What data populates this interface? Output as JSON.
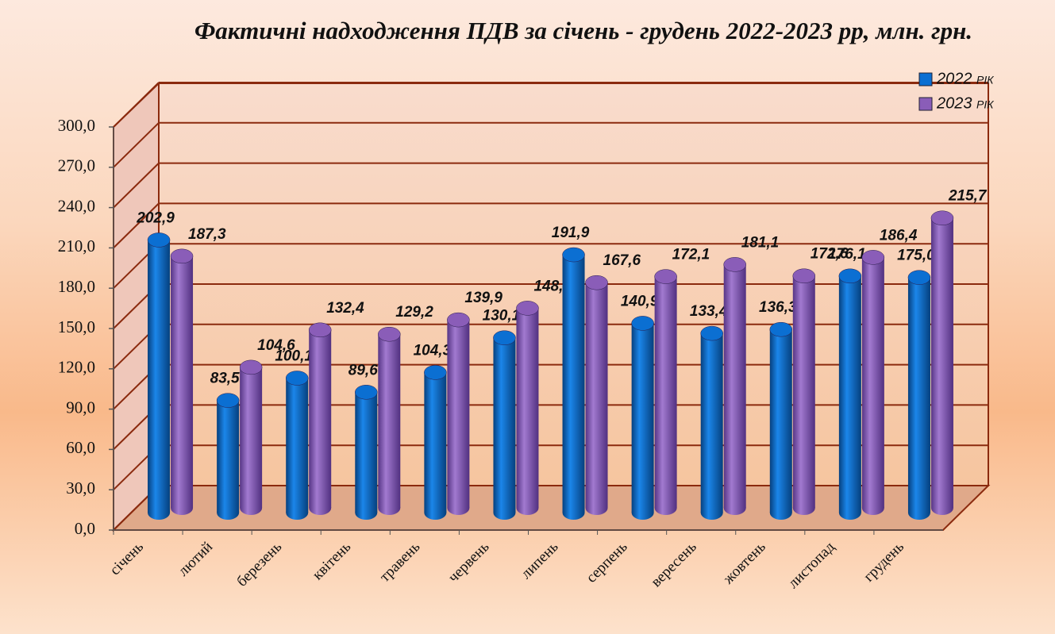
{
  "chart_data": {
    "type": "bar3d",
    "title": "Фактичні надходження ПДВ за січень - грудень 2022-2023 рр, млн. грн.",
    "categories": [
      "січень",
      "лютий",
      "березень",
      "квітень",
      "травень",
      "червень",
      "липень",
      "серпень",
      "вересень",
      "жовтень",
      "листопад",
      "грудень"
    ],
    "series": [
      {
        "name": "2022 рік",
        "color": "#0b6fd2",
        "values": [
          202.9,
          83.5,
          100.1,
          89.6,
          104.3,
          130.1,
          191.9,
          140.9,
          133.4,
          136.3,
          176.1,
          175.0
        ],
        "value_labels": [
          "202,9",
          "83,5",
          "100,1",
          "89,6",
          "104,3",
          "130,1",
          "191,9",
          "140,9",
          "133,4",
          "136,3",
          "176,1",
          "175,0"
        ]
      },
      {
        "name": "2023 рік",
        "color": "#8a5db8",
        "values": [
          187.3,
          104.6,
          132.4,
          129.2,
          139.9,
          148.6,
          167.6,
          172.1,
          181.1,
          172.6,
          186.4,
          215.7
        ],
        "value_labels": [
          "187,3",
          "104,6",
          "132,4",
          "129,2",
          "139,9",
          "148,6",
          "167,6",
          "172,1",
          "181,1",
          "172,6",
          "186,4",
          "215,7"
        ]
      }
    ],
    "ylim": [
      0,
      300
    ],
    "yticks": [
      {
        "value": 0,
        "label": "0,0"
      },
      {
        "value": 30,
        "label": "30,0"
      },
      {
        "value": 60,
        "label": "60,0"
      },
      {
        "value": 90,
        "label": "90,0"
      },
      {
        "value": 120,
        "label": "120,0"
      },
      {
        "value": 150,
        "label": "150,0"
      },
      {
        "value": 180,
        "label": "180,0"
      },
      {
        "value": 210,
        "label": "210,0"
      },
      {
        "value": 240,
        "label": "240,0"
      },
      {
        "value": 270,
        "label": "270,0"
      },
      {
        "value": 300,
        "label": "300,0"
      }
    ],
    "grid": true,
    "legend": "top-right"
  }
}
